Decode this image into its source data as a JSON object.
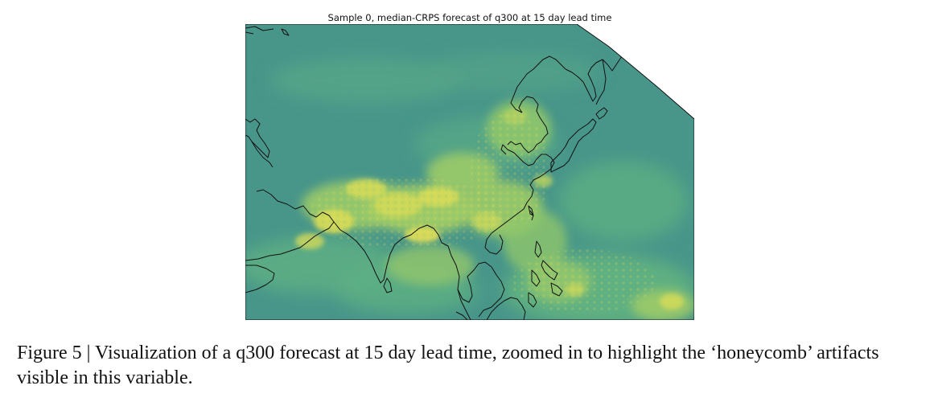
{
  "figure": {
    "title": "Sample 0, median-CRPS forecast of q300 at 15 day lead time",
    "caption_label": "Figure 5 |",
    "caption_text": "Visualization of a q300 forecast at 15 day lead time, zoomed in to highlight the ‘honeycomb’ artifacts visible in this variable."
  },
  "map": {
    "variable": "q300",
    "lead_time": "15 day",
    "region": "South and East Asia",
    "colormap": "viridis",
    "colors": {
      "base": "#45938b",
      "mid": "#5aae83",
      "light": "#8ec66c",
      "bright": "#c6d85a",
      "peak": "#e3df56",
      "coast": "#111111"
    }
  }
}
